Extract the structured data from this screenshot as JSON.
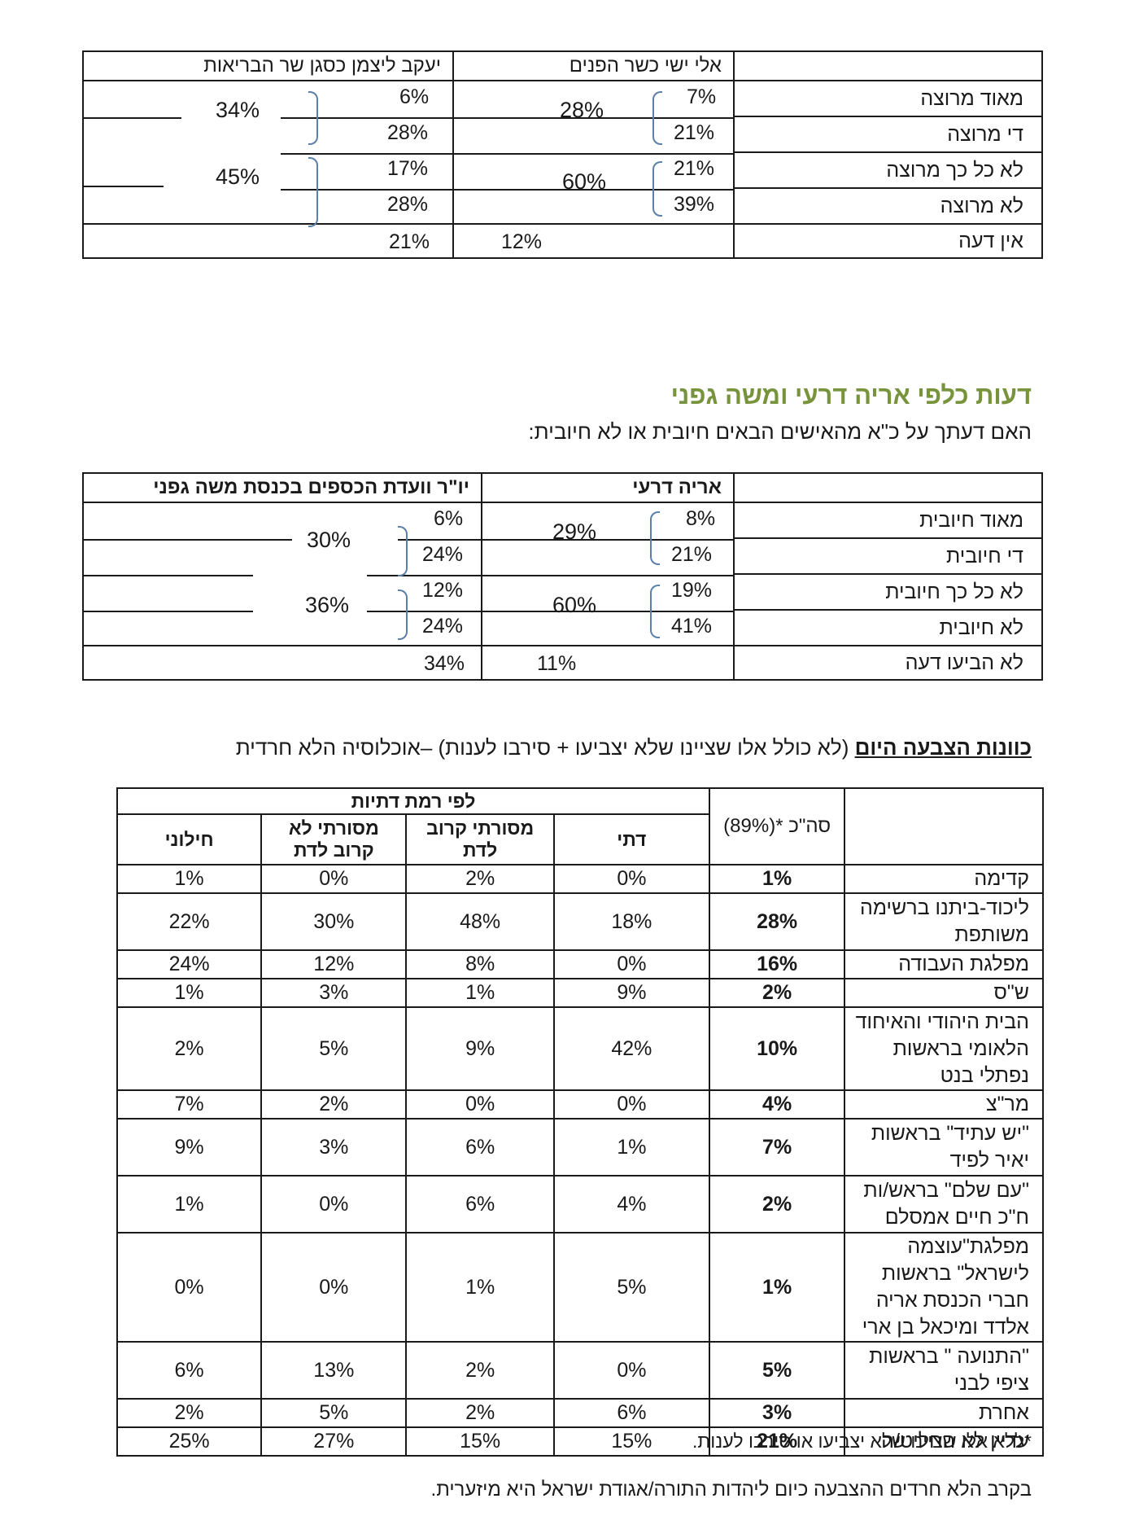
{
  "table1": {
    "columns": [
      "אלי ישי כשר הפנים",
      "יעקב ליצמן כסגן שר הבריאות"
    ],
    "rows": [
      {
        "label": "מאוד מרוצה",
        "values": [
          "7%",
          "6%"
        ]
      },
      {
        "label": "די מרוצה",
        "values": [
          "21%",
          "28%"
        ]
      },
      {
        "label": "לא כל כך מרוצה",
        "values": [
          "21%",
          "17%"
        ]
      },
      {
        "label": "לא מרוצה",
        "values": [
          "39%",
          "28%"
        ]
      },
      {
        "label": "אין דעה",
        "values": [
          "12%",
          "21%"
        ]
      }
    ],
    "sums": {
      "positive": [
        "28%",
        "34%"
      ],
      "negative": [
        "60%",
        "45%"
      ]
    }
  },
  "section2": {
    "title": "דעות כלפי אריה דרעי ומשה גפני",
    "question": "האם דעתך על כ\"א מהאישים הבאים חיובית או לא חיובית:"
  },
  "table2": {
    "columns": [
      "אריה דרעי",
      "יו\"ר וועדת הכספים בכנסת משה גפני"
    ],
    "rows": [
      {
        "label": "מאוד חיובית",
        "values": [
          "8%",
          "6%"
        ]
      },
      {
        "label": "די חיובית",
        "values": [
          "21%",
          "24%"
        ]
      },
      {
        "label": "לא כל כך חיובית",
        "values": [
          "19%",
          "12%"
        ]
      },
      {
        "label": "לא חיובית",
        "values": [
          "41%",
          "24%"
        ]
      },
      {
        "label": "לא הביעו דעה",
        "values": [
          "11%",
          "34%"
        ]
      }
    ],
    "sums": {
      "positive": [
        "29%",
        "30%"
      ],
      "negative": [
        "60%",
        "36%"
      ]
    }
  },
  "section3": {
    "title_underlined": "כוונות הצבעה היום",
    "title_rest": " (לא כולל אלו שציינו שלא יצביעו + סירבו לענות) –אוכלוסיה הלא חרדית"
  },
  "table3": {
    "total_header": "סה\"כ *(89%)",
    "group_header": "לפי רמת דתיות",
    "sub_headers": [
      "דתי",
      "מסורתי קרוב לדת",
      "מסורתי לא קרוב לדת",
      "חילוני"
    ],
    "rows": [
      {
        "party": "קדימה",
        "total": "1%",
        "values": [
          "0%",
          "2%",
          "0%",
          "1%"
        ]
      },
      {
        "party": "ליכוד-ביתנו ברשימה משותפת",
        "total": "28%",
        "values": [
          "18%",
          "48%",
          "30%",
          "22%"
        ]
      },
      {
        "party": "מפלגת העבודה",
        "total": "16%",
        "values": [
          "0%",
          "8%",
          "12%",
          "24%"
        ]
      },
      {
        "party": "ש\"ס",
        "total": "2%",
        "values": [
          "9%",
          "1%",
          "3%",
          "1%"
        ]
      },
      {
        "party": "הבית היהודי והאיחוד הלאומי בראשות נפתלי בנט",
        "total": "10%",
        "values": [
          "42%",
          "9%",
          "5%",
          "2%"
        ]
      },
      {
        "party": "מר\"צ",
        "total": "4%",
        "values": [
          "0%",
          "0%",
          "2%",
          "7%"
        ]
      },
      {
        "party": "\"יש עתיד\" בראשות יאיר לפיד",
        "total": "7%",
        "values": [
          "1%",
          "6%",
          "3%",
          "9%"
        ]
      },
      {
        "party": "\"עם שלם\" בראש/ות ח\"כ חיים אמסלם",
        "total": "2%",
        "values": [
          "4%",
          "6%",
          "0%",
          "1%"
        ]
      },
      {
        "party": "מפלגת\"עוצמה לישראל\" בראשות חברי הכנסת אריה אלדד ומיכאל בן ארי",
        "total": "1%",
        "values": [
          "5%",
          "1%",
          "0%",
          "0%"
        ]
      },
      {
        "party": "\"התנועה \" בראשות ציפי לבני",
        "total": "5%",
        "values": [
          "0%",
          "2%",
          "13%",
          "6%"
        ]
      },
      {
        "party": "אחרת",
        "total": "3%",
        "values": [
          "6%",
          "2%",
          "5%",
          "2%"
        ]
      },
      {
        "party": "עדיין לא החליט/ה",
        "total": "21%",
        "values": [
          "15%",
          "15%",
          "27%",
          "25%"
        ]
      }
    ],
    "footnote": "*ללא אלו שציינו שלא יצביעו או סירבו לענות."
  },
  "closing_note": "בקרב הלא חרדים ההצבעה כיום ליהדות התורה/אגודת ישראל  היא מיזערית."
}
